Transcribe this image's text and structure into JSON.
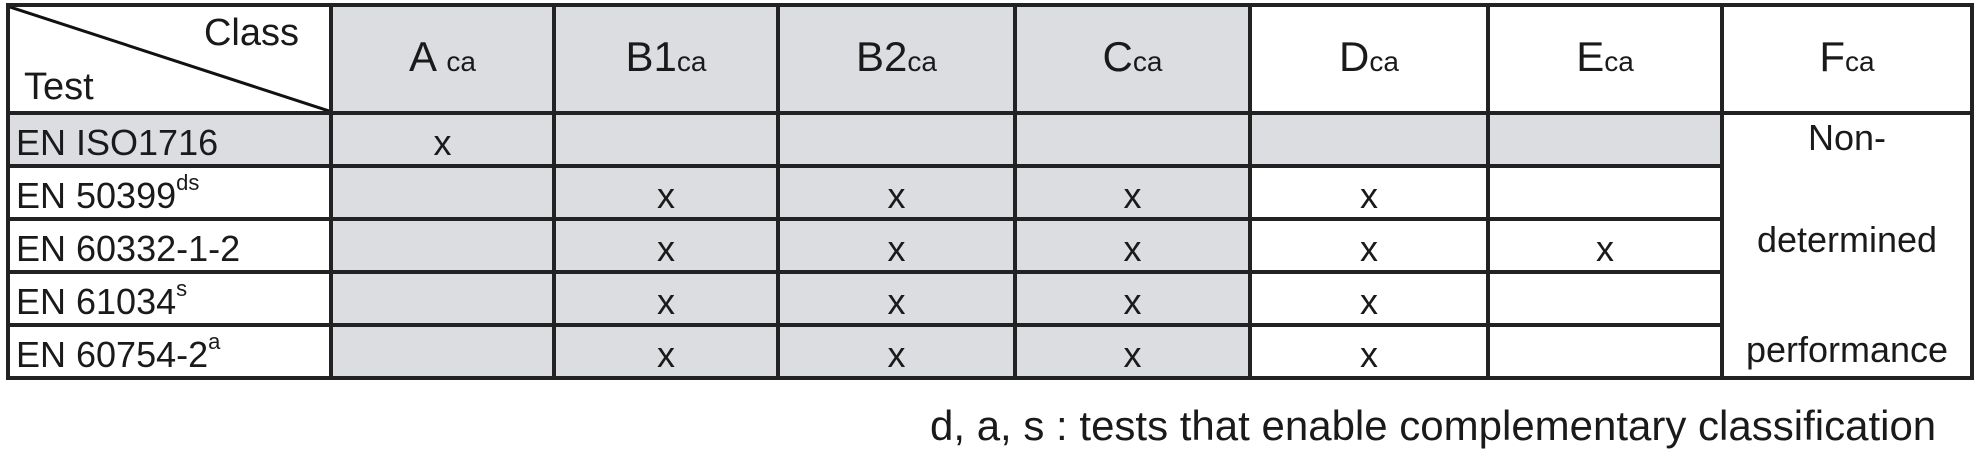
{
  "header": {
    "corner_top": "Class",
    "corner_bottom": "Test",
    "classes": [
      {
        "base": "A",
        "sub": "ca"
      },
      {
        "base": "B1",
        "sub": "ca"
      },
      {
        "base": "B2",
        "sub": "ca"
      },
      {
        "base": "C",
        "sub": "ca"
      },
      {
        "base": "D",
        "sub": "ca"
      },
      {
        "base": "E",
        "sub": "ca"
      },
      {
        "base": "F",
        "sub": "ca"
      }
    ]
  },
  "rows": [
    {
      "label": "EN ISO1716",
      "sup": "",
      "marks": [
        "x",
        "",
        "",
        "",
        "",
        ""
      ]
    },
    {
      "label": "EN 50399",
      "sup": "ds",
      "marks": [
        "",
        "x",
        "x",
        "x",
        "x",
        ""
      ]
    },
    {
      "label": "EN 60332-1-2",
      "sup": "",
      "marks": [
        "",
        "x",
        "x",
        "x",
        "x",
        "x"
      ]
    },
    {
      "label": "EN 61034",
      "sup": "s",
      "marks": [
        "",
        "x",
        "x",
        "x",
        "x",
        ""
      ]
    },
    {
      "label": "EN 60754-2",
      "sup": "a",
      "marks": [
        "",
        "x",
        "x",
        "x",
        "x",
        ""
      ]
    }
  ],
  "f_column_text": [
    "Non-",
    "determined",
    "performance"
  ],
  "footnote": "d, a, s : tests that enable complementary classification",
  "colors": {
    "shaded": "#dcdde0",
    "border": "#222222"
  }
}
